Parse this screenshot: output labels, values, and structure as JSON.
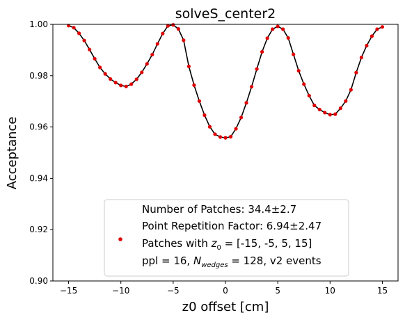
{
  "chart_data": {
    "type": "scatter",
    "title": "solveS_center2",
    "xlabel": "z0 offset [cm]",
    "ylabel": "Acceptance",
    "xlim": [
      -16.5,
      16.5
    ],
    "ylim": [
      0.9,
      1.0
    ],
    "xticks": [
      -15,
      -10,
      -5,
      0,
      5,
      10,
      15
    ],
    "yticks": [
      0.9,
      0.92,
      0.94,
      0.96,
      0.98,
      1.0
    ],
    "xtick_labels": [
      "−15",
      "−10",
      "−5",
      "0",
      "5",
      "10",
      "15"
    ],
    "ytick_labels": [
      "0.90",
      "0.92",
      "0.94",
      "0.96",
      "0.98",
      "1.00"
    ],
    "grid": false,
    "legend_position": "lower-center",
    "legend": {
      "line1": "Number of Patches: 34.4±2.7",
      "line2": "Point Repetition Factor: 6.94±2.47",
      "line3_prefix": "Patches with ",
      "line3_var": "z",
      "line3_sub": "0",
      "line3_suffix": " = [-15, -5, 5, 15]",
      "line4_prefix": "ppl = 16, ",
      "line4_var": "N",
      "line4_sub": "wedges",
      "line4_suffix": " = 128, v2 events"
    },
    "series": [
      {
        "kind": "points",
        "color": "#e00000",
        "x": [
          -15.0,
          -14.5,
          -14.0,
          -13.5,
          -13.0,
          -12.5,
          -12.0,
          -11.5,
          -11.0,
          -10.5,
          -10.0,
          -9.5,
          -9.0,
          -8.5,
          -8.0,
          -7.5,
          -7.0,
          -6.5,
          -6.0,
          -5.5,
          -5.0,
          -4.5,
          -4.0,
          -3.5,
          -3.0,
          -2.5,
          -2.0,
          -1.5,
          -1.0,
          -0.5,
          0.0,
          0.5,
          1.0,
          1.5,
          2.0,
          2.5,
          3.0,
          3.5,
          4.0,
          4.5,
          5.0,
          5.5,
          6.0,
          6.5,
          7.0,
          7.5,
          8.0,
          8.5,
          9.0,
          9.5,
          10.0,
          10.5,
          11.0,
          11.5,
          12.0,
          12.5,
          13.0,
          13.5,
          14.0,
          14.5,
          15.0
        ],
        "y": [
          0.9995,
          0.9987,
          0.9965,
          0.9937,
          0.9902,
          0.9866,
          0.9832,
          0.9807,
          0.9787,
          0.9773,
          0.9762,
          0.9758,
          0.9767,
          0.9786,
          0.9813,
          0.9846,
          0.9882,
          0.9924,
          0.9964,
          0.9994,
          0.9998,
          0.9982,
          0.9938,
          0.9836,
          0.9763,
          0.9701,
          0.9646,
          0.9601,
          0.9572,
          0.9561,
          0.9558,
          0.9562,
          0.9593,
          0.9637,
          0.9694,
          0.9757,
          0.9826,
          0.9893,
          0.9946,
          0.9981,
          0.9992,
          0.9981,
          0.9947,
          0.9883,
          0.9819,
          0.9767,
          0.9722,
          0.9684,
          0.9668,
          0.9656,
          0.9648,
          0.965,
          0.9673,
          0.9701,
          0.9745,
          0.9812,
          0.9871,
          0.9917,
          0.9954,
          0.9981,
          0.999
        ]
      },
      {
        "kind": "line",
        "color": "#000000",
        "x": [
          -15.0,
          -14.5,
          -14.0,
          -13.5,
          -13.0,
          -12.5,
          -12.0,
          -11.5,
          -11.0,
          -10.5,
          -10.0,
          -9.5,
          -9.0,
          -8.5,
          -8.0,
          -7.5,
          -7.0,
          -6.5,
          -6.0,
          -5.5,
          -5.0,
          -4.5,
          -4.0,
          -3.5,
          -3.0,
          -2.5,
          -2.0,
          -1.5,
          -1.0,
          -0.5,
          0.0,
          0.5,
          1.0,
          1.5,
          2.0,
          2.5,
          3.0,
          3.5,
          4.0,
          4.5,
          5.0,
          5.5,
          6.0,
          6.5,
          7.0,
          7.5,
          8.0,
          8.5,
          9.0,
          9.5,
          10.0,
          10.5,
          11.0,
          11.5,
          12.0,
          12.5,
          13.0,
          13.5,
          14.0,
          14.5,
          15.0
        ],
        "y": [
          0.9995,
          0.9987,
          0.9965,
          0.9937,
          0.9902,
          0.9866,
          0.9832,
          0.9807,
          0.9787,
          0.9773,
          0.9762,
          0.9758,
          0.9767,
          0.9786,
          0.9813,
          0.9846,
          0.9882,
          0.9924,
          0.9964,
          0.9994,
          0.9998,
          0.9982,
          0.9938,
          0.9836,
          0.9763,
          0.9701,
          0.9646,
          0.9601,
          0.9572,
          0.9561,
          0.9558,
          0.9562,
          0.9593,
          0.9637,
          0.9694,
          0.9757,
          0.9826,
          0.9893,
          0.9946,
          0.9981,
          0.9992,
          0.9981,
          0.9947,
          0.9883,
          0.9819,
          0.9767,
          0.9722,
          0.9684,
          0.9668,
          0.9656,
          0.9648,
          0.965,
          0.9673,
          0.9701,
          0.9745,
          0.9812,
          0.9871,
          0.9917,
          0.9954,
          0.9981,
          0.999
        ]
      }
    ]
  }
}
